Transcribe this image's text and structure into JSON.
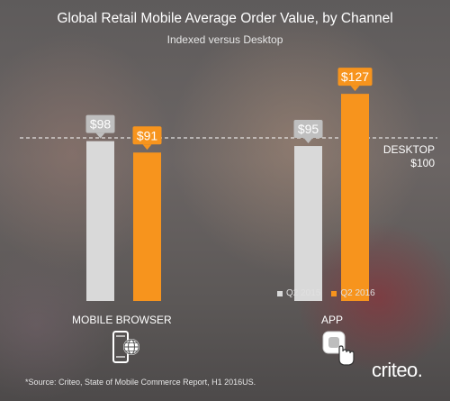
{
  "title": "Global Retail Mobile Average Order Value, by Channel",
  "subtitle": "Indexed versus Desktop",
  "chart_data": {
    "type": "bar",
    "categories": [
      "MOBILE BROWSER",
      "APP"
    ],
    "series": [
      {
        "name": "Q2 2015",
        "values": [
          98,
          95
        ],
        "labels": [
          "$98",
          "$95"
        ],
        "color": "#d9d9d9"
      },
      {
        "name": "Q2 2016",
        "values": [
          91,
          127
        ],
        "labels": [
          "$91",
          "$127"
        ],
        "color": "#f7941d"
      }
    ],
    "baseline": {
      "label": "DESKTOP",
      "value_label": "$100",
      "value": 100
    },
    "ylim": [
      0,
      130
    ],
    "legend_position": "bottom-right",
    "grid": false
  },
  "icons": [
    "mobile-browser-icon",
    "app-tap-icon"
  ],
  "footnote": "*Source: Criteo, State of Mobile Commerce Report, H1 2016US.",
  "brand": "criteo."
}
